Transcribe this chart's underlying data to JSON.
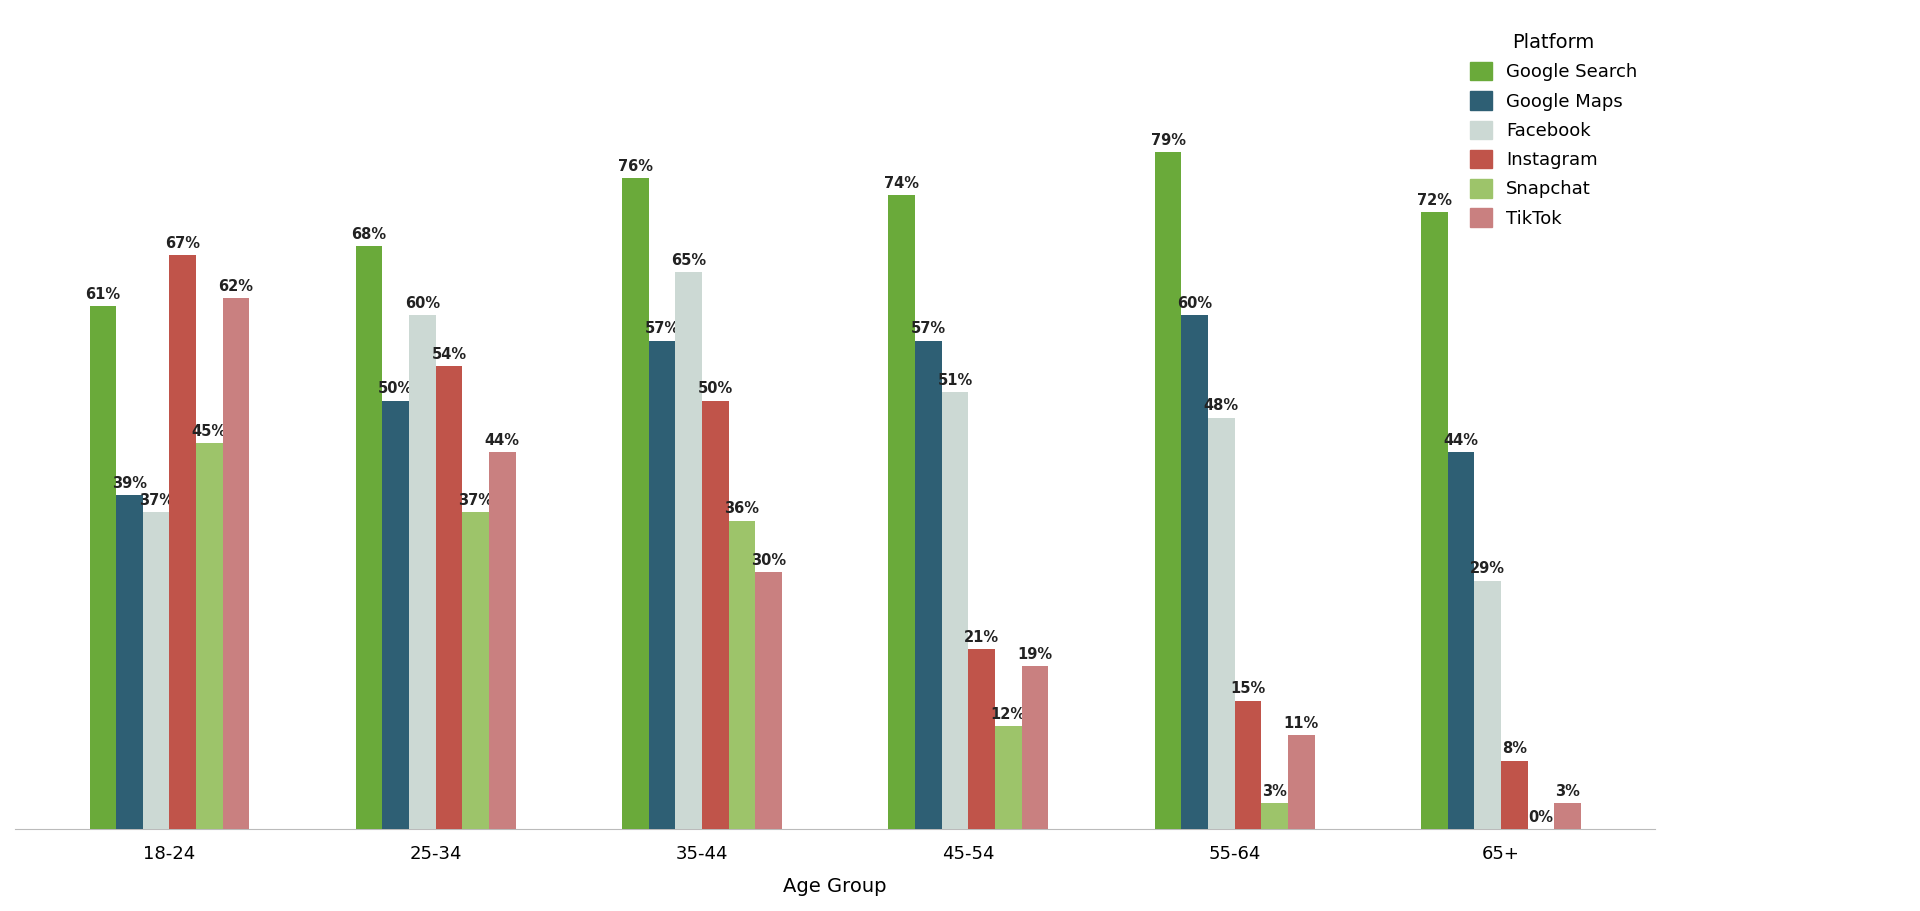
{
  "title": "",
  "xlabel": "Age Group",
  "ylabel": "",
  "age_groups": [
    "18-24",
    "25-34",
    "35-44",
    "45-54",
    "55-64",
    "65+"
  ],
  "platforms": [
    "Google Search",
    "Google Maps",
    "Facebook",
    "Instagram",
    "Snapchat",
    "TikTok"
  ],
  "values": {
    "Google Search": [
      61,
      68,
      76,
      74,
      79,
      72
    ],
    "Google Maps": [
      39,
      50,
      57,
      57,
      60,
      44
    ],
    "Facebook": [
      37,
      60,
      65,
      51,
      48,
      29
    ],
    "Instagram": [
      67,
      54,
      50,
      21,
      15,
      8
    ],
    "Snapchat": [
      45,
      37,
      36,
      12,
      3,
      0
    ],
    "TikTok": [
      62,
      44,
      30,
      19,
      11,
      3
    ]
  },
  "colors": {
    "Google Search": "#6aaa3a",
    "Google Maps": "#2e5f74",
    "Facebook": "#ccd9d4",
    "Instagram": "#c0544a",
    "Snapchat": "#9dc46a",
    "TikTok": "#c98080"
  },
  "background_color": "#ffffff",
  "legend_title": "Platform",
  "bar_width": 0.14,
  "figsize": [
    19.2,
    9.11
  ],
  "dpi": 100,
  "ylim": [
    0,
    95
  ],
  "label_fontsize": 10.5,
  "legend_fontsize": 13,
  "legend_title_fontsize": 14,
  "xlabel_fontsize": 14,
  "xtick_fontsize": 13
}
